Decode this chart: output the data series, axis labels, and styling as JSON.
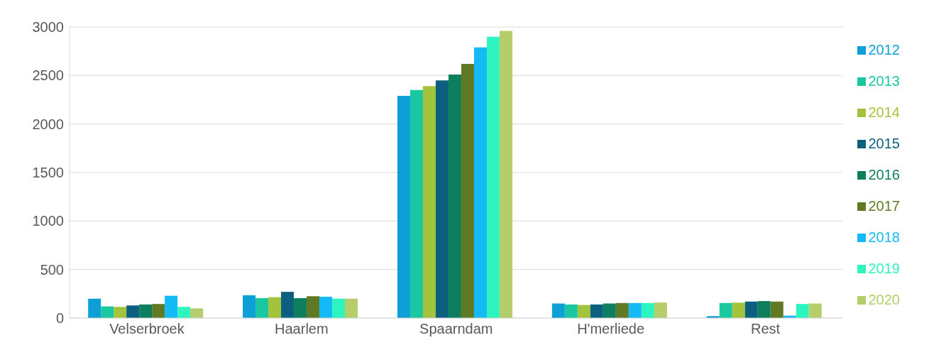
{
  "chart_data": {
    "type": "bar",
    "categories": [
      "Velserbroek",
      "Haarlem",
      "Spaarndam",
      "H'merliede",
      "Rest"
    ],
    "series": [
      {
        "name": "2012",
        "color": "#0e9fd8",
        "values": [
          200,
          235,
          2290,
          150,
          20
        ]
      },
      {
        "name": "2013",
        "color": "#19c8a0",
        "values": [
          120,
          205,
          2350,
          140,
          155
        ]
      },
      {
        "name": "2014",
        "color": "#a3c33c",
        "values": [
          115,
          215,
          2390,
          135,
          160
        ]
      },
      {
        "name": "2015",
        "color": "#0d5f7f",
        "values": [
          130,
          270,
          2450,
          140,
          170
        ]
      },
      {
        "name": "2016",
        "color": "#0d7e5e",
        "values": [
          140,
          205,
          2510,
          150,
          175
        ]
      },
      {
        "name": "2017",
        "color": "#5f7a23",
        "values": [
          145,
          225,
          2620,
          155,
          170
        ]
      },
      {
        "name": "2018",
        "color": "#14baf5",
        "values": [
          230,
          220,
          2790,
          155,
          25
        ]
      },
      {
        "name": "2019",
        "color": "#2ef5c0",
        "values": [
          115,
          200,
          2900,
          155,
          145
        ]
      },
      {
        "name": "2020",
        "color": "#b6cd6c",
        "values": [
          100,
          200,
          2960,
          160,
          150
        ]
      }
    ],
    "ylim": [
      0,
      3000
    ],
    "yticks": [
      0,
      500,
      1000,
      1500,
      2000,
      2500,
      3000
    ],
    "grid": "y",
    "legend": "right"
  }
}
